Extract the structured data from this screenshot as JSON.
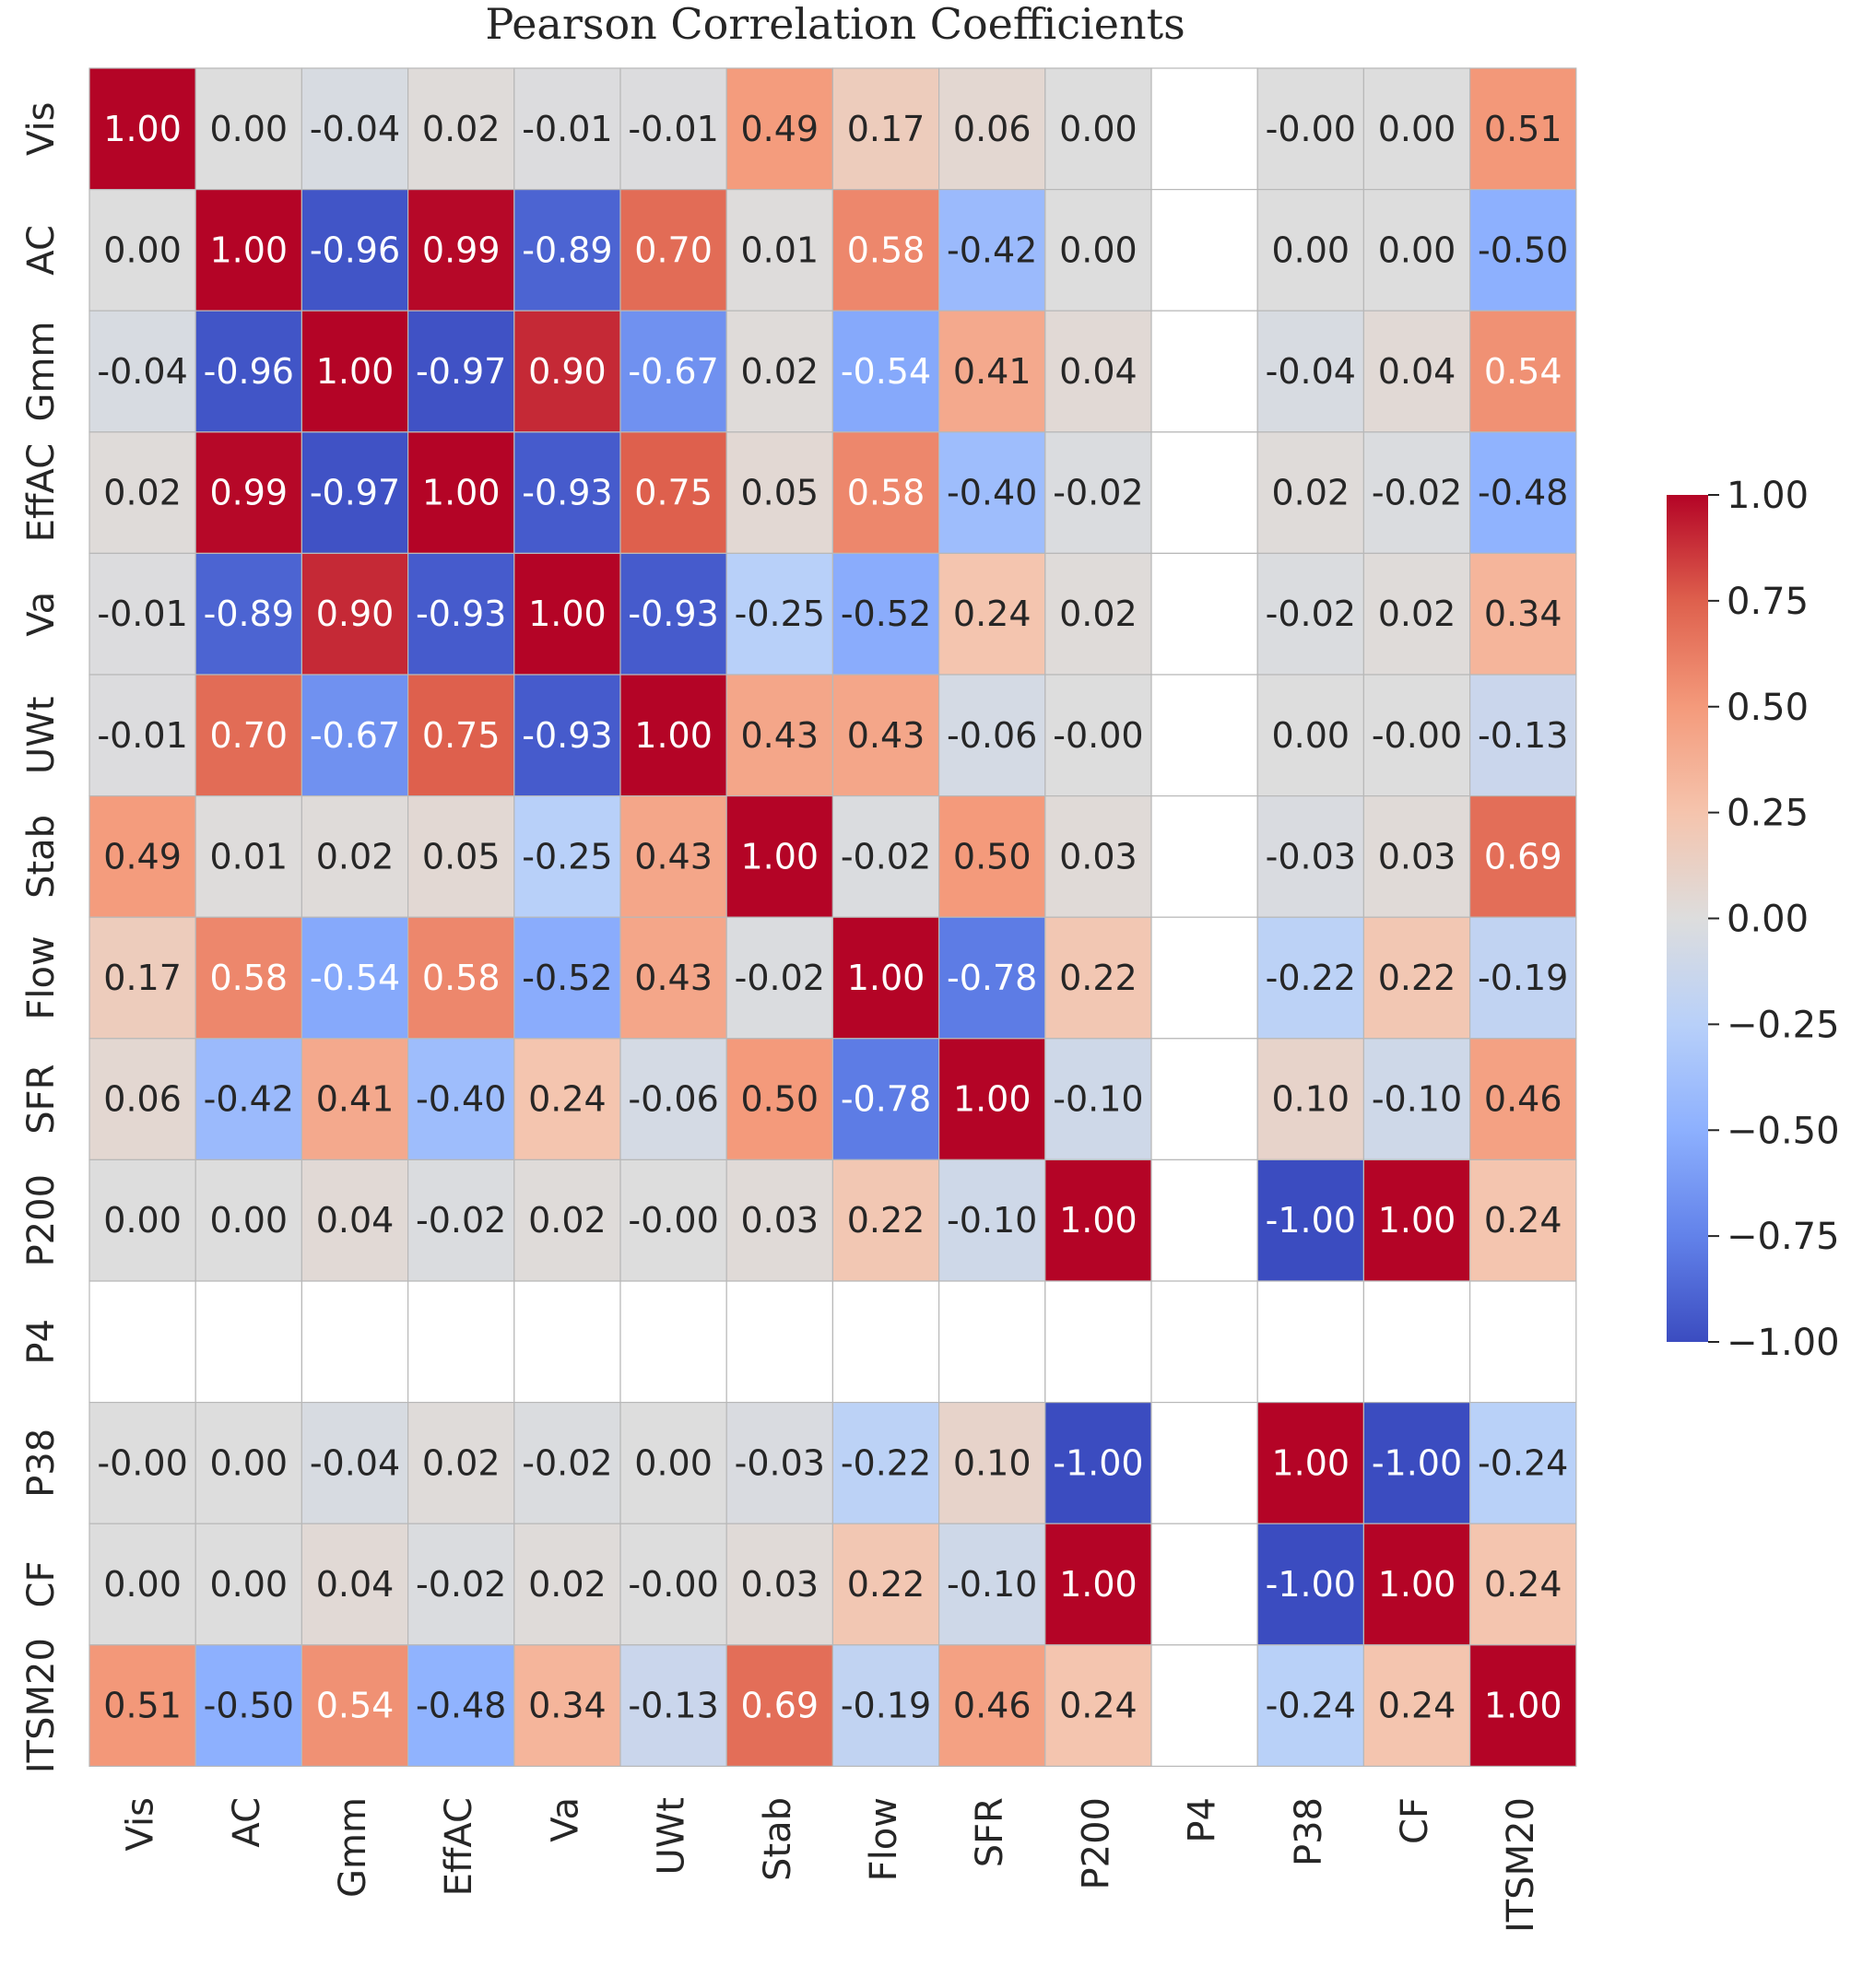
{
  "chart_data": {
    "type": "heatmap",
    "title": "Pearson Correlation Coefficients",
    "xlabel": "",
    "ylabel": "",
    "colormap": "coolwarm",
    "vmin": -1.0,
    "vmax": 1.0,
    "labels": [
      "Vis",
      "AC",
      "Gmm",
      "EffAC",
      "Va",
      "UWt",
      "Stab",
      "Flow",
      "SFR",
      "P200",
      "P4",
      "P38",
      "CF",
      "ITSM20"
    ],
    "display": [
      [
        "1.00",
        "0.00",
        "-0.04",
        "0.02",
        "-0.01",
        "-0.01",
        "0.49",
        "0.17",
        "0.06",
        "0.00",
        "",
        "-0.00",
        "0.00",
        "0.51"
      ],
      [
        "0.00",
        "1.00",
        "-0.96",
        "0.99",
        "-0.89",
        "0.70",
        "0.01",
        "0.58",
        "-0.42",
        "0.00",
        "",
        "0.00",
        "0.00",
        "-0.50"
      ],
      [
        "-0.04",
        "-0.96",
        "1.00",
        "-0.97",
        "0.90",
        "-0.67",
        "0.02",
        "-0.54",
        "0.41",
        "0.04",
        "",
        "-0.04",
        "0.04",
        "0.54"
      ],
      [
        "0.02",
        "0.99",
        "-0.97",
        "1.00",
        "-0.93",
        "0.75",
        "0.05",
        "0.58",
        "-0.40",
        "-0.02",
        "",
        "0.02",
        "-0.02",
        "-0.48"
      ],
      [
        "-0.01",
        "-0.89",
        "0.90",
        "-0.93",
        "1.00",
        "-0.93",
        "-0.25",
        "-0.52",
        "0.24",
        "0.02",
        "",
        "-0.02",
        "0.02",
        "0.34"
      ],
      [
        "-0.01",
        "0.70",
        "-0.67",
        "0.75",
        "-0.93",
        "1.00",
        "0.43",
        "0.43",
        "-0.06",
        "-0.00",
        "",
        "0.00",
        "-0.00",
        "-0.13"
      ],
      [
        "0.49",
        "0.01",
        "0.02",
        "0.05",
        "-0.25",
        "0.43",
        "1.00",
        "-0.02",
        "0.50",
        "0.03",
        "",
        "-0.03",
        "0.03",
        "0.69"
      ],
      [
        "0.17",
        "0.58",
        "-0.54",
        "0.58",
        "-0.52",
        "0.43",
        "-0.02",
        "1.00",
        "-0.78",
        "0.22",
        "",
        "-0.22",
        "0.22",
        "-0.19"
      ],
      [
        "0.06",
        "-0.42",
        "0.41",
        "-0.40",
        "0.24",
        "-0.06",
        "0.50",
        "-0.78",
        "1.00",
        "-0.10",
        "",
        "0.10",
        "-0.10",
        "0.46"
      ],
      [
        "0.00",
        "0.00",
        "0.04",
        "-0.02",
        "0.02",
        "-0.00",
        "0.03",
        "0.22",
        "-0.10",
        "1.00",
        "",
        "-1.00",
        "1.00",
        "0.24"
      ],
      [
        "",
        "",
        "",
        "",
        "",
        "",
        "",
        "",
        "",
        "",
        "",
        "",
        "",
        ""
      ],
      [
        "-0.00",
        "0.00",
        "-0.04",
        "0.02",
        "-0.02",
        "0.00",
        "-0.03",
        "-0.22",
        "0.10",
        "-1.00",
        "",
        "1.00",
        "-1.00",
        "-0.24"
      ],
      [
        "0.00",
        "0.00",
        "0.04",
        "-0.02",
        "0.02",
        "-0.00",
        "0.03",
        "0.22",
        "-0.10",
        "1.00",
        "",
        "-1.00",
        "1.00",
        "0.24"
      ],
      [
        "0.51",
        "-0.50",
        "0.54",
        "-0.48",
        "0.34",
        "-0.13",
        "0.69",
        "-0.19",
        "0.46",
        "0.24",
        "",
        "-0.24",
        "0.24",
        "1.00"
      ]
    ],
    "colorbar": {
      "ticks": [
        1.0,
        0.75,
        0.5,
        0.25,
        0.0,
        -0.25,
        -0.5,
        -0.75,
        -1.0
      ],
      "tick_labels": [
        "1.00",
        "0.75",
        "0.50",
        "0.25",
        "0.00",
        "−0.25",
        "−0.50",
        "−0.75",
        "−1.00"
      ]
    },
    "colors": {
      "empty_cell": "#ffffff",
      "grid_line": "#b8b8b8",
      "text_dark": "#262626",
      "text_light": "#ffffff"
    }
  }
}
